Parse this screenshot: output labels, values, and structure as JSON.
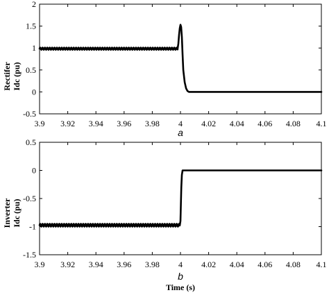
{
  "chart_data": [
    {
      "type": "line",
      "panel_label": "a",
      "ylabel_lines": [
        "Rectifer",
        "Idc (pu)"
      ],
      "xlabel": "",
      "xlim": [
        3.9,
        4.1
      ],
      "ylim": [
        -0.5,
        2
      ],
      "xticks": [
        "3.9",
        "3.92",
        "3.94",
        "3.96",
        "3.98",
        "4",
        "4.02",
        "4.04",
        "4.06",
        "4.08",
        "4.1"
      ],
      "yticks": [
        "-0.5",
        "0",
        "0.5",
        "1",
        "1.5",
        "2"
      ],
      "grid": false,
      "series": [
        {
          "ripple": {
            "x_start": 3.9,
            "x_end": 3.998,
            "mean": 0.985,
            "amplitude": 0.025,
            "period": 0.0017
          },
          "points": [
            [
              3.998,
              0.99
            ],
            [
              3.9985,
              1.1
            ],
            [
              3.999,
              1.3
            ],
            [
              3.9995,
              1.45
            ],
            [
              4.0,
              1.53
            ],
            [
              4.0005,
              1.48
            ],
            [
              4.001,
              1.25
            ],
            [
              4.0015,
              0.85
            ],
            [
              4.002,
              0.5
            ],
            [
              4.003,
              0.22
            ],
            [
              4.004,
              0.08
            ],
            [
              4.005,
              0.02
            ],
            [
              4.006,
              0.0
            ],
            [
              4.1,
              0.0
            ]
          ]
        }
      ]
    },
    {
      "type": "line",
      "panel_label": "b",
      "ylabel_lines": [
        "Inverter",
        "Idc (pu)"
      ],
      "xlabel": "Time (s)",
      "xlim": [
        3.9,
        4.1
      ],
      "ylim": [
        -1.5,
        0.5
      ],
      "xticks": [
        "3.9",
        "3.92",
        "3.94",
        "3.96",
        "3.98",
        "4",
        "4.02",
        "4.04",
        "4.06",
        "4.08",
        "4.1"
      ],
      "yticks": [
        "-1.5",
        "-1",
        "-0.5",
        "0",
        "0.5"
      ],
      "grid": false,
      "series": [
        {
          "ripple": {
            "x_start": 3.9,
            "x_end": 3.9995,
            "mean": -0.975,
            "amplitude": 0.025,
            "period": 0.0017
          },
          "points": [
            [
              3.9995,
              -0.98
            ],
            [
              4.0,
              -0.9
            ],
            [
              4.0003,
              -0.6
            ],
            [
              4.0006,
              -0.3
            ],
            [
              4.001,
              -0.08
            ],
            [
              4.0015,
              0.0
            ],
            [
              4.1,
              0.0
            ]
          ]
        }
      ]
    }
  ]
}
